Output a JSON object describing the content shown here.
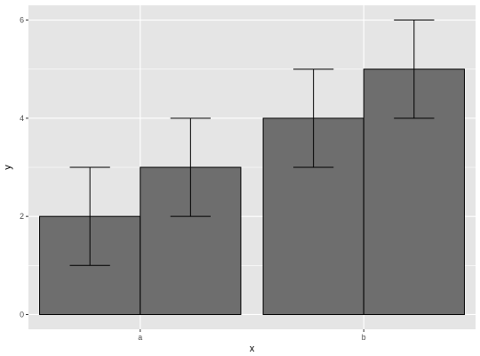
{
  "chart_data": {
    "type": "bar",
    "title": "",
    "xlabel": "x",
    "ylabel": "y",
    "categories": [
      "a",
      "b"
    ],
    "groups_per_category": 2,
    "bars": [
      {
        "category": "a",
        "value": 2,
        "error_low": 1,
        "error_high": 3
      },
      {
        "category": "a",
        "value": 3,
        "error_low": 2,
        "error_high": 4
      },
      {
        "category": "b",
        "value": 4,
        "error_low": 3,
        "error_high": 5
      },
      {
        "category": "b",
        "value": 5,
        "error_low": 4,
        "error_high": 6
      }
    ],
    "ylim": [
      -0.3,
      6.3
    ],
    "y_ticks": [
      0,
      2,
      4,
      6
    ],
    "grid": true,
    "panel_background": "#e5e5e5",
    "bar_fill": "#6e6e6e",
    "bar_outline": "#000000"
  }
}
